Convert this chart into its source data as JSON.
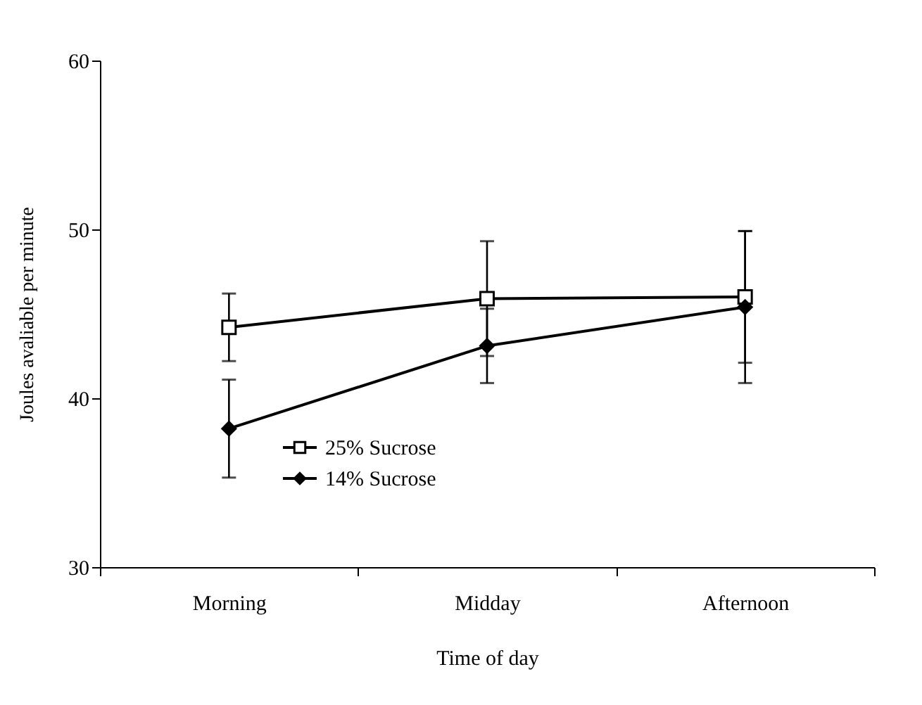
{
  "chart_data": {
    "type": "line",
    "xlabel": "Time of day",
    "ylabel": "Joules avaliable per minute",
    "categories": [
      "Morning",
      "Midday",
      "Afternoon"
    ],
    "series": [
      {
        "name": "25% Sucrose",
        "color": "#000000",
        "marker": "square",
        "values": [
          44.2,
          45.9,
          46.0
        ],
        "errors": [
          2.0,
          3.4,
          3.9
        ]
      },
      {
        "name": "14% Sucrose",
        "color": "#000000",
        "marker": "diamond",
        "values": [
          38.2,
          43.1,
          45.4
        ],
        "errors": [
          2.9,
          2.2,
          4.5
        ]
      }
    ],
    "ylim": [
      30,
      60
    ],
    "yticks": [
      30,
      40,
      50,
      60
    ],
    "grid": false,
    "legend": "bottom left",
    "line_style": "solid"
  }
}
